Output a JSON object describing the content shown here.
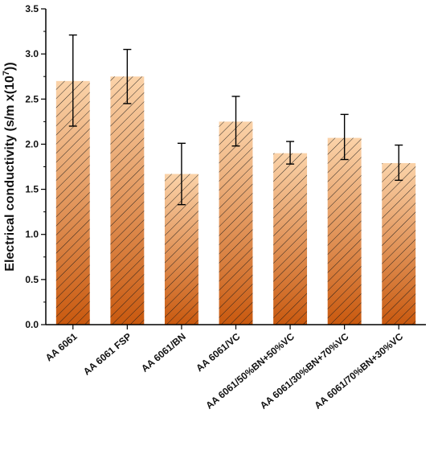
{
  "chart_data": {
    "type": "bar",
    "title": "",
    "xlabel": "",
    "ylabel": "Electrical conductivity (s/m x(10",
    "ylabel_superscript": "7",
    "ylabel_suffix": "))",
    "ylim": [
      0,
      3.5
    ],
    "yticks": [
      "0.0",
      "0.5",
      "1.0",
      "1.5",
      "2.0",
      "2.5",
      "3.0",
      "3.5"
    ],
    "grid": false,
    "categories": [
      "AA 6061",
      "AA 6061 FSP",
      "AA 6061/BN",
      "AA 6061/VC",
      "AA 6061/50%BN+50%VC",
      "AA 6061/30%BN+70%VC",
      "AA 6061/70%BN+30%VC"
    ],
    "values": [
      2.7,
      2.75,
      1.67,
      2.25,
      1.9,
      2.07,
      1.79
    ],
    "error_high": [
      3.21,
      3.05,
      2.01,
      2.53,
      2.03,
      2.33,
      1.99
    ],
    "error_low": [
      2.2,
      2.45,
      1.33,
      1.98,
      1.78,
      1.83,
      1.6
    ],
    "bar_style": "diagonal hatch with vertical gradient",
    "colors": {
      "gradient_top": "#fbd3a9",
      "gradient_bottom": "#c9590f",
      "hatch": "#1a1a1a",
      "axis": "#000000"
    }
  }
}
